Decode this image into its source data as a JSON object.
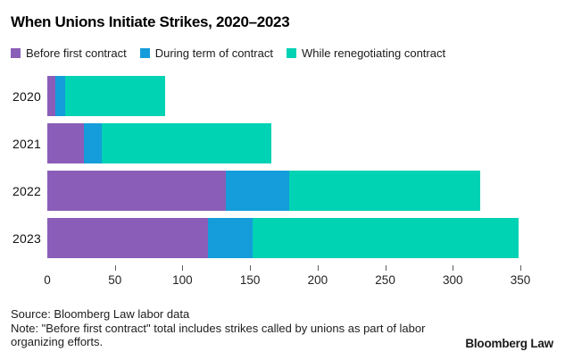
{
  "title": "When Unions Initiate Strikes, 2020–2023",
  "chart_data": {
    "type": "bar",
    "orientation": "horizontal",
    "stacked": true,
    "title": "When Unions Initiate Strikes, 2020–2023",
    "categories": [
      "2020",
      "2021",
      "2022",
      "2023"
    ],
    "series": [
      {
        "name": "Before first contract",
        "color": "#8a5eb8",
        "values": [
          6,
          27,
          132,
          119
        ]
      },
      {
        "name": "During term of contract",
        "color": "#149dda",
        "values": [
          7,
          13,
          47,
          33
        ]
      },
      {
        "name": "While renegotiating contract",
        "color": "#00d2b4",
        "values": [
          74,
          126,
          141,
          197
        ]
      }
    ],
    "totals": [
      87,
      166,
      320,
      349
    ],
    "xlim": [
      0,
      350
    ],
    "xticks": [
      0,
      50,
      100,
      150,
      200,
      250,
      300,
      350
    ],
    "legend_position": "top",
    "grid": false
  },
  "footer": {
    "source": "Source: Bloomberg Law labor data",
    "note": "Note: \"Before first contract\" total includes strikes called by unions as part of labor organizing efforts.",
    "brand": "Bloomberg Law"
  }
}
